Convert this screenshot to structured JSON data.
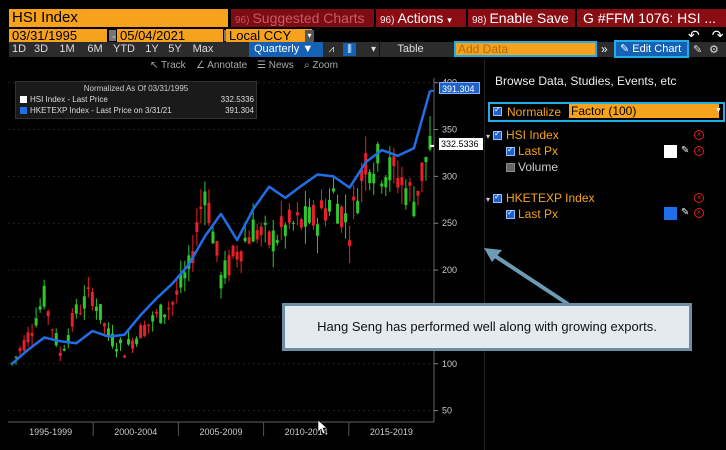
{
  "header": {
    "security": "HSI Index",
    "suggested_charts": "Suggested Charts",
    "suggested_code": "96)",
    "actions": "Actions",
    "actions_code": "96)",
    "enable_save": "Enable Save",
    "enable_save_code": "98)",
    "window_title": "G #FFM 1076: HSI ..."
  },
  "dates": {
    "start": "03/31/1995",
    "end": "05/04/2021",
    "currency": "Local CCY"
  },
  "toolbar": {
    "periods": [
      "1D",
      "3D",
      "1M",
      "6M",
      "YTD",
      "1Y",
      "5Y",
      "Max"
    ],
    "frequency": "Quarterly",
    "table": "Table",
    "add_data_placeholder": "Add Data",
    "edit_chart": "Edit Chart"
  },
  "chart_tools": {
    "track": "Track",
    "annotate": "Annotate",
    "news": "News",
    "zoom": "Zoom"
  },
  "legend": {
    "header": "Normalized As Of 03/31/1995",
    "items": [
      {
        "label": "HSI Index - Last Price",
        "value": "332.5336",
        "color": "#ffffff"
      },
      {
        "label": "HKETEXP Index - Last Price on 3/31/21",
        "value": "391.304",
        "color": "#1f6fe8"
      }
    ]
  },
  "price_tags": {
    "hketexp": "391.304",
    "hsi": "332.5336"
  },
  "panel": {
    "browse": "Browse Data, Studies, Events, etc",
    "normalize": "Normalize",
    "factor": "Factor (100)",
    "sections": [
      {
        "title": "HSI Index",
        "items": [
          "Last Px",
          "Volume"
        ],
        "swatch": "#ffffff"
      },
      {
        "title": "HKETEXP Index",
        "items": [
          "Last Px"
        ],
        "swatch": "#1f6fe8"
      }
    ]
  },
  "annotation": "Hang Seng has performed well along with growing exports.",
  "colors": {
    "orange": "#f7a21c",
    "red_header": "#8b0d14",
    "blue": "#1f6fe8",
    "up_candle": "#2ec72e",
    "down_candle": "#e8202a"
  },
  "chart_data": {
    "type": "line",
    "x_tick_labels": [
      "1995-1999",
      "2000-2004",
      "2005-2009",
      "2010-2014",
      "2015-2019"
    ],
    "y_ticks": [
      50,
      100,
      150,
      200,
      250,
      300,
      350,
      400
    ],
    "ylim": [
      40,
      405
    ],
    "x": [
      "1995",
      "1996",
      "1997",
      "1998",
      "1999",
      "2000",
      "2001",
      "2002",
      "2003",
      "2004",
      "2005",
      "2006",
      "2007",
      "2008",
      "2009",
      "2010",
      "2011",
      "2012",
      "2013",
      "2014",
      "2015",
      "2016",
      "2017",
      "2018",
      "2019",
      "2020",
      "2021"
    ],
    "series": [
      {
        "name": "HKETEXP Index - Last Price on 3/31/21",
        "values": [
          100,
          115,
          128,
          124,
          122,
          135,
          129,
          131,
          152,
          170,
          186,
          206,
          236,
          260,
          232,
          265,
          289,
          277,
          290,
          302,
          300,
          288,
          315,
          328,
          322,
          330,
          391.304
        ]
      },
      {
        "name": "HSI Index - Last Price",
        "values": [
          100,
          130,
          170,
          110,
          155,
          175,
          130,
          115,
          135,
          150,
          165,
          200,
          290,
          190,
          220,
          245,
          230,
          245,
          250,
          255,
          280,
          245,
          320,
          310,
          300,
          275,
          332.5336
        ]
      }
    ]
  }
}
